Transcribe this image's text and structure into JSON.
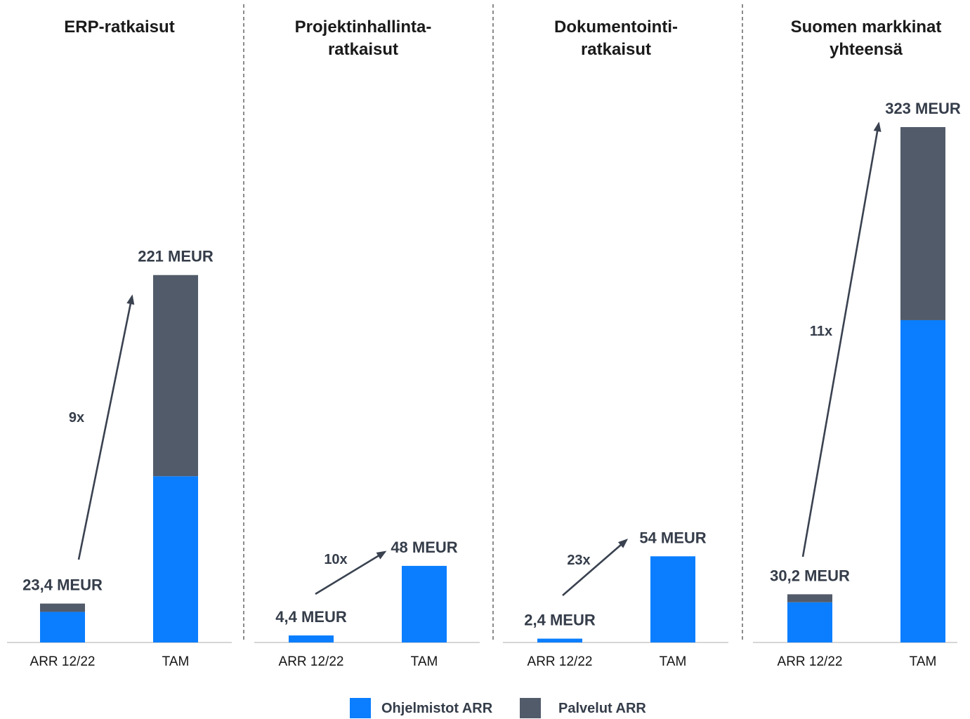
{
  "legend": {
    "position": "bottom",
    "items": [
      {
        "label": "Ohjelmistot ARR",
        "color": "#0A7EFF"
      },
      {
        "label": "Palvelut ARR",
        "color": "#525B6A"
      }
    ]
  },
  "chart_data": [
    {
      "type": "bar",
      "stacked": true,
      "title_lines": [
        "ERP-ratkaisut"
      ],
      "categories": [
        "ARR 12/22",
        "TAM"
      ],
      "series": [
        {
          "name": "Ohjelmistot ARR",
          "values": [
            18.4,
            100
          ],
          "color": "#0A7EFF"
        },
        {
          "name": "Palvelut ARR",
          "values": [
            5.0,
            121
          ],
          "color": "#525B6A"
        }
      ],
      "totals": [
        23.4,
        221
      ],
      "data_labels": [
        "23,4 MEUR",
        "221 MEUR"
      ],
      "multiplier_label": "9x",
      "ylim": [
        0,
        310
      ],
      "grid": false
    },
    {
      "type": "bar",
      "stacked": true,
      "title_lines": [
        "Projektinhallinta-",
        "ratkaisut"
      ],
      "categories": [
        "ARR 12/22",
        "TAM"
      ],
      "series": [
        {
          "name": "Ohjelmistot ARR",
          "values": [
            4.4,
            48
          ],
          "color": "#0A7EFF"
        }
      ],
      "totals": [
        4.4,
        48
      ],
      "data_labels": [
        "4,4 MEUR",
        "48 MEUR"
      ],
      "multiplier_label": "10x",
      "ylim": [
        0,
        323
      ],
      "grid": false
    },
    {
      "type": "bar",
      "stacked": true,
      "title_lines": [
        "Dokumentointi-",
        "ratkaisut"
      ],
      "categories": [
        "ARR 12/22",
        "TAM"
      ],
      "series": [
        {
          "name": "Ohjelmistot ARR",
          "values": [
            2.4,
            54
          ],
          "color": "#0A7EFF"
        }
      ],
      "totals": [
        2.4,
        54
      ],
      "data_labels": [
        "2,4 MEUR",
        "54 MEUR"
      ],
      "multiplier_label": "23x",
      "ylim": [
        0,
        323
      ],
      "grid": false
    },
    {
      "type": "bar",
      "stacked": true,
      "title_lines": [
        "Suomen markkinat",
        "yhteensä"
      ],
      "categories": [
        "ARR 12/22",
        "TAM"
      ],
      "series": [
        {
          "name": "Ohjelmistot ARR",
          "values": [
            25.2,
            202
          ],
          "color": "#0A7EFF"
        },
        {
          "name": "Palvelut ARR",
          "values": [
            5.0,
            121
          ],
          "color": "#525B6A"
        }
      ],
      "totals": [
        30.2,
        323
      ],
      "data_labels": [
        "30,2 MEUR",
        "323 MEUR"
      ],
      "multiplier_label": "11x",
      "ylim": [
        0,
        323
      ],
      "grid": false
    }
  ]
}
